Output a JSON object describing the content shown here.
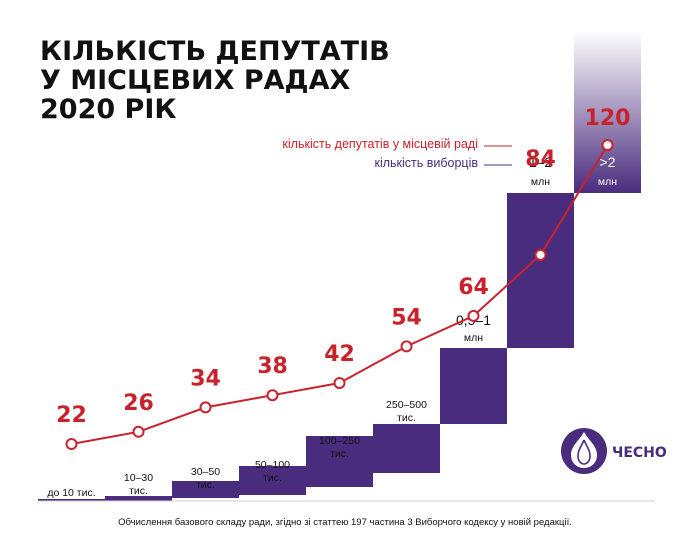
{
  "title_lines": [
    "КІЛЬКІСТЬ ДЕПУТАТІВ",
    "У МІСЦЕВИХ РАДАХ",
    "2020 РІК"
  ],
  "legend": {
    "deputies": "кількість депутатів у місцевій раді",
    "voters": "кількість виборців"
  },
  "footnote": "Обчислення базового складу ради, згідно зі статтею 197 частина 3 Виборчого кодексу у новій редакції.",
  "logo": {
    "text": "ЧЕСНО",
    "icon": "garlic-icon"
  },
  "colors": {
    "red": "#c8232c",
    "purple": "#4a2c7e",
    "gradient_top": "#f3f0f7"
  },
  "chart_data": {
    "type": "line",
    "title": "КІЛЬКІСТЬ ДЕПУТАТІВ У МІСЦЕВИХ РАДАХ 2020 РІК",
    "categories": [
      "до 10 тис.",
      "10–30 тис.",
      "30–50 тис.",
      "50–100 тис.",
      "100–250 тис.",
      "250–500 тис.",
      "0,5–1 млн",
      "1–2 млн",
      ">2 млн"
    ],
    "bins": [
      {
        "line1": "до 10 тис.",
        "line2": ""
      },
      {
        "line1": "10–30",
        "line2": "тис."
      },
      {
        "line1": "30–50",
        "line2": "тис."
      },
      {
        "line1": "50–100",
        "line2": "тис."
      },
      {
        "line1": "100–250",
        "line2": "тис."
      },
      {
        "line1": "250–500",
        "line2": "тис."
      },
      {
        "line1": "0,5–1",
        "line2": "млн"
      },
      {
        "line1": "1–2",
        "line2": "млн"
      },
      {
        "line1": ">2",
        "line2": "млн"
      }
    ],
    "series": [
      {
        "name": "кількість депутатів у місцевій раді",
        "values": [
          22,
          26,
          34,
          38,
          42,
          54,
          64,
          84,
          120
        ]
      }
    ],
    "voter_steps": [
      0,
      1,
      2,
      3,
      4,
      5,
      6,
      7,
      8
    ],
    "grid": false,
    "legend_position": "top-right"
  }
}
